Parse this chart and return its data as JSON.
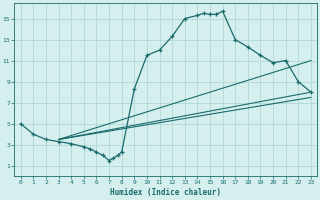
{
  "bg_color": "#d5efef",
  "line_color": "#1a6b6b",
  "grid_color": "#b0d8d8",
  "xlabel": "Humidex (Indice chaleur)",
  "xlim": [
    -0.5,
    23.5
  ],
  "ylim": [
    0,
    16.5
  ],
  "yticks": [
    1,
    3,
    5,
    7,
    9,
    11,
    13,
    15
  ],
  "xticks": [
    0,
    1,
    2,
    3,
    4,
    5,
    6,
    7,
    8,
    9,
    10,
    11,
    12,
    13,
    14,
    15,
    16,
    17,
    18,
    19,
    20,
    21,
    22,
    23
  ],
  "main_curve_x": [
    0,
    1,
    2,
    3,
    4,
    5,
    5.5,
    6,
    6.5,
    7,
    7.3,
    7.7,
    8,
    9,
    10,
    11,
    12,
    13,
    14,
    14.5,
    15,
    15.5,
    16,
    17,
    18,
    19,
    20,
    21,
    22,
    23
  ],
  "main_curve_y": [
    5,
    4,
    3.5,
    3.3,
    3.1,
    2.8,
    2.6,
    2.3,
    2.0,
    1.5,
    1.7,
    2.0,
    2.3,
    8.3,
    11.5,
    12.0,
    13.3,
    15.0,
    15.3,
    15.5,
    15.4,
    15.4,
    15.7,
    13.0,
    12.3,
    11.5,
    10.8,
    11.0,
    9.0,
    8.0
  ],
  "line1_x": [
    3,
    23
  ],
  "line1_y": [
    3.5,
    11.0
  ],
  "line2_x": [
    3,
    23
  ],
  "line2_y": [
    3.5,
    8.0
  ],
  "line3_x": [
    3,
    23
  ],
  "line3_y": [
    3.5,
    7.5
  ],
  "figsize": [
    3.2,
    2.0
  ],
  "dpi": 100
}
